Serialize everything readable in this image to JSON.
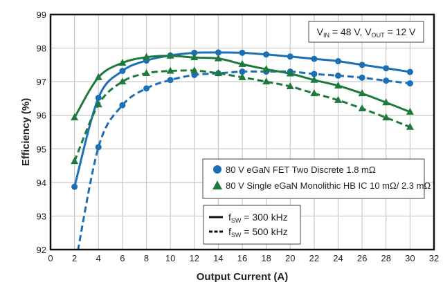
{
  "chart_data": {
    "type": "line",
    "title": "",
    "xlabel": "Output Current (A)",
    "ylabel": "Efficiency (%)",
    "xlim": [
      0,
      32
    ],
    "ylim": [
      92,
      99
    ],
    "xticks": [
      "0",
      "2",
      "4",
      "6",
      "8",
      "10",
      "12",
      "14",
      "16",
      "18",
      "20",
      "22",
      "24",
      "26",
      "28",
      "30",
      "32"
    ],
    "yticks": [
      "92",
      "93",
      "94",
      "95",
      "96",
      "97",
      "98",
      "99"
    ],
    "grid": true,
    "annotation": {
      "v_in_label": "V",
      "v_in_sub": "IN",
      "v_in_value": " = 48 V, ",
      "v_out_label": "V",
      "v_out_sub": "OUT",
      "v_out_value": " = 12 V"
    },
    "legend_devices": {
      "placement": "center-right",
      "items": [
        {
          "label": "80 V eGaN FET Two Discrete 1.8 mΩ",
          "marker": "circle",
          "color": "#1a6fb5"
        },
        {
          "label": "80 V Single eGaN Monolithic HB IC 10 mΩ/ 2.3 mΩ",
          "marker": "triangle",
          "color": "#1e7a3c"
        }
      ]
    },
    "legend_freq": {
      "placement": "bottom-center",
      "items": [
        {
          "prefix": "f",
          "sub": "SW",
          "label": " = 300 kHz",
          "style": "solid"
        },
        {
          "prefix": "f",
          "sub": "SW",
          "label": " = 500 kHz",
          "style": "dashed"
        }
      ]
    },
    "x": [
      2,
      4,
      6,
      8,
      10,
      12,
      14,
      16,
      18,
      20,
      22,
      24,
      26,
      28,
      30
    ],
    "series": [
      {
        "device": "80 V eGaN FET Two Discrete 1.8 mΩ",
        "fsw": "300 kHz",
        "color": "#1a6fb5",
        "marker": "circle",
        "style": "solid",
        "values": [
          93.87,
          96.52,
          97.32,
          97.63,
          97.78,
          97.86,
          97.87,
          97.86,
          97.81,
          97.75,
          97.68,
          97.61,
          97.5,
          97.4,
          97.29
        ]
      },
      {
        "device": "80 V eGaN FET Two Discrete 1.8 mΩ",
        "fsw": "500 kHz",
        "color": "#1a6fb5",
        "marker": "circle",
        "style": "dashed",
        "values": [
          91.4,
          95.05,
          96.3,
          96.8,
          97.05,
          97.2,
          97.25,
          97.3,
          97.3,
          97.3,
          97.23,
          97.18,
          97.12,
          97.03,
          96.95
        ]
      },
      {
        "device": "80 V Single eGaN Monolithic HB IC 10 mΩ/ 2.3 mΩ",
        "fsw": "300 kHz",
        "color": "#1e7a3c",
        "marker": "triangle",
        "style": "solid",
        "values": [
          95.93,
          97.13,
          97.56,
          97.73,
          97.77,
          97.72,
          97.69,
          97.52,
          97.37,
          97.24,
          97.05,
          96.88,
          96.65,
          96.38,
          96.1
        ]
      },
      {
        "device": "80 V Single eGaN Monolithic HB IC 10 mΩ/ 2.3 mΩ",
        "fsw": "500 kHz",
        "color": "#1e7a3c",
        "marker": "triangle",
        "style": "dashed",
        "values": [
          94.63,
          96.32,
          97.0,
          97.25,
          97.32,
          97.33,
          97.25,
          97.13,
          97.0,
          96.86,
          96.65,
          96.45,
          96.2,
          95.93,
          95.65
        ]
      }
    ]
  }
}
